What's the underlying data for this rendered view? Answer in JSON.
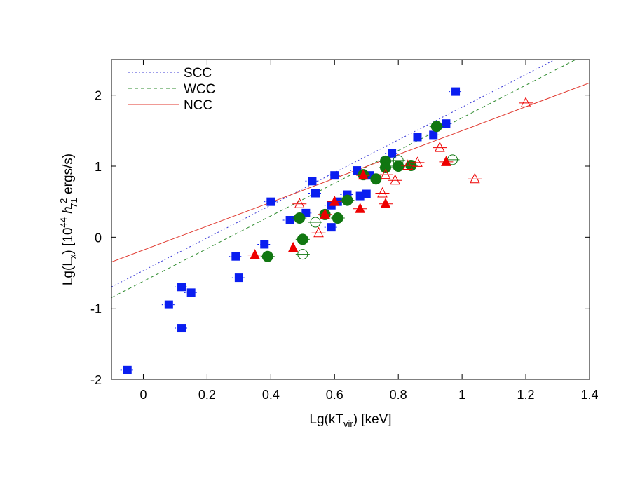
{
  "chart_data": {
    "type": "scatter",
    "xlabel": "Lg(kT",
    "xlabel_sub": "vir",
    "xlabel_tail": ") [keV]",
    "ylabel_main": "Lg(L",
    "ylabel_sub": "x",
    "ylabel_mid": ") [10",
    "ylabel_sup": "44",
    "ylabel_h": " h",
    "ylabel_hsup": "-2",
    "ylabel_hsub": "71",
    "ylabel_tail": " ergs/s)",
    "xlim": [
      -0.1,
      1.4
    ],
    "ylim": [
      -2,
      2.5
    ],
    "xticks": [
      0,
      0.2,
      0.4,
      0.6,
      0.8,
      1,
      1.2,
      1.4
    ],
    "xtick_labels": [
      "0",
      "0.2",
      "0.4",
      "0.6",
      "0.8",
      "1",
      "1.2",
      "1.4"
    ],
    "yticks": [
      -2,
      -1,
      0,
      1,
      2
    ],
    "ytick_labels": [
      "-2",
      "-1",
      "0",
      "1",
      "2"
    ],
    "grid": false,
    "legend_position": "top-left",
    "lines": [
      {
        "name": "SCC",
        "slope": 2.3,
        "intercept": -0.47,
        "color": "#3b3bd6",
        "dash": "2,3"
      },
      {
        "name": "WCC",
        "slope": 2.3,
        "intercept": -0.62,
        "color": "#2e8b2e",
        "dash": "5,4"
      },
      {
        "name": "NCC",
        "slope": 1.68,
        "intercept": -0.18,
        "color": "#e0352b",
        "dash": ""
      }
    ],
    "series": [
      {
        "group": "SCC",
        "marker": "square",
        "filled": true,
        "color": "#0a1ef0",
        "points": [
          [
            -0.05,
            -1.87
          ],
          [
            0.08,
            -0.95
          ],
          [
            0.12,
            -0.7
          ],
          [
            0.12,
            -1.28
          ],
          [
            0.15,
            -0.78
          ],
          [
            0.29,
            -0.27
          ],
          [
            0.3,
            -0.57
          ],
          [
            0.38,
            -0.1
          ],
          [
            0.4,
            0.5
          ],
          [
            0.46,
            0.24
          ],
          [
            0.51,
            0.34
          ],
          [
            0.53,
            0.79
          ],
          [
            0.54,
            0.62
          ],
          [
            0.59,
            0.14
          ],
          [
            0.59,
            0.45
          ],
          [
            0.6,
            0.87
          ],
          [
            0.61,
            0.5
          ],
          [
            0.64,
            0.6
          ],
          [
            0.67,
            0.94
          ],
          [
            0.68,
            0.58
          ],
          [
            0.7,
            0.61
          ],
          [
            0.71,
            0.87
          ],
          [
            0.76,
            1.07
          ],
          [
            0.78,
            1.18
          ],
          [
            0.86,
            1.41
          ],
          [
            0.91,
            1.44
          ],
          [
            0.95,
            1.6
          ],
          [
            0.98,
            2.05
          ]
        ]
      },
      {
        "group": "WCC",
        "marker": "circle",
        "filled": true,
        "color": "#117711",
        "points": [
          [
            0.39,
            -0.27
          ],
          [
            0.49,
            0.27
          ],
          [
            0.5,
            -0.03
          ],
          [
            0.57,
            0.32
          ],
          [
            0.61,
            0.27
          ],
          [
            0.64,
            0.52
          ],
          [
            0.69,
            0.88
          ],
          [
            0.73,
            0.82
          ],
          [
            0.76,
            1.07
          ],
          [
            0.76,
            0.98
          ],
          [
            0.8,
            1.0
          ],
          [
            0.84,
            1.01
          ],
          [
            0.92,
            1.56
          ]
        ]
      },
      {
        "group": "WCC",
        "marker": "circle",
        "filled": false,
        "color": "#117711",
        "points": [
          [
            0.5,
            -0.24
          ],
          [
            0.54,
            0.21
          ],
          [
            0.8,
            1.08
          ],
          [
            0.97,
            1.09
          ]
        ]
      },
      {
        "group": "NCC",
        "marker": "triangle",
        "filled": true,
        "color": "#ee0000",
        "points": [
          [
            0.35,
            -0.25
          ],
          [
            0.47,
            -0.15
          ],
          [
            0.57,
            0.32
          ],
          [
            0.6,
            0.5
          ],
          [
            0.68,
            0.4
          ],
          [
            0.69,
            0.87
          ],
          [
            0.76,
            0.47
          ],
          [
            0.95,
            1.06
          ]
        ]
      },
      {
        "group": "NCC",
        "marker": "triangle",
        "filled": false,
        "color": "#ee0000",
        "points": [
          [
            0.49,
            0.47
          ],
          [
            0.55,
            0.06
          ],
          [
            0.75,
            0.62
          ],
          [
            0.76,
            0.88
          ],
          [
            0.79,
            0.8
          ],
          [
            0.83,
            1.01
          ],
          [
            0.86,
            1.05
          ],
          [
            0.93,
            1.26
          ],
          [
            1.04,
            0.82
          ],
          [
            1.2,
            1.89
          ]
        ]
      }
    ]
  }
}
